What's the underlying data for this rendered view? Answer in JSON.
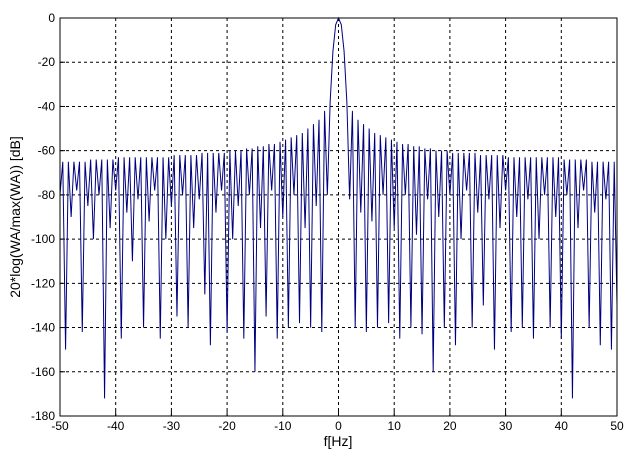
{
  "chart_data": {
    "type": "line",
    "xlabel": "f[Hz]",
    "ylabel": "20*log(WA/max(WA)) [dB]",
    "xlim": [
      -50,
      50
    ],
    "ylim": [
      -180,
      0
    ],
    "xticks": [
      -50,
      -40,
      -30,
      -20,
      -10,
      0,
      10,
      20,
      30,
      40,
      50
    ],
    "yticks": [
      0,
      -20,
      -40,
      -60,
      -80,
      -100,
      -120,
      -140,
      -160,
      -180
    ],
    "grid": true,
    "series": [
      {
        "color": "#00007f",
        "x": [
          -50,
          -49.5,
          -49,
          -48.5,
          -48,
          -47.5,
          -47,
          -46.5,
          -46,
          -45.5,
          -45,
          -44.5,
          -44,
          -43.5,
          -43,
          -42.5,
          -42,
          -41.5,
          -41,
          -40.5,
          -40,
          -39.5,
          -39,
          -38.5,
          -38,
          -37.5,
          -37,
          -36.5,
          -36,
          -35.5,
          -35,
          -34.5,
          -34,
          -33.5,
          -33,
          -32.5,
          -32,
          -31.5,
          -31,
          -30.5,
          -30,
          -29.5,
          -29,
          -28.5,
          -28,
          -27.5,
          -27,
          -26.5,
          -26,
          -25.5,
          -25,
          -24.5,
          -24,
          -23.5,
          -23,
          -22.5,
          -22,
          -21.5,
          -21,
          -20.5,
          -20,
          -19.5,
          -19,
          -18.5,
          -18,
          -17.5,
          -17,
          -16.5,
          -16,
          -15.5,
          -15,
          -14.5,
          -14,
          -13.5,
          -13,
          -12.5,
          -12,
          -11.5,
          -11,
          -10.5,
          -10,
          -9.5,
          -9,
          -8.5,
          -8,
          -7.5,
          -7,
          -6.5,
          -6,
          -5.5,
          -5,
          -4.5,
          -4,
          -3.5,
          -3,
          -2.5,
          -2,
          -1.5,
          -1,
          -0.5,
          0,
          0.5,
          1,
          1.5,
          2,
          2.5,
          3,
          3.5,
          4,
          4.5,
          5,
          5.5,
          6,
          6.5,
          7,
          7.5,
          8,
          8.5,
          9,
          9.5,
          10,
          10.5,
          11,
          11.5,
          12,
          12.5,
          13,
          13.5,
          14,
          14.5,
          15,
          15.5,
          16,
          16.5,
          17,
          17.5,
          18,
          18.5,
          19,
          19.5,
          20,
          20.5,
          21,
          21.5,
          22,
          22.5,
          23,
          23.5,
          24,
          24.5,
          25,
          25.5,
          26,
          26.5,
          27,
          27.5,
          28,
          28.5,
          29,
          29.5,
          30,
          30.5,
          31,
          31.5,
          32,
          32.5,
          33,
          33.5,
          34,
          34.5,
          35,
          35.5,
          36,
          36.5,
          37,
          37.5,
          38,
          38.5,
          39,
          39.5,
          40,
          40.5,
          41,
          41.5,
          42,
          42.5,
          43,
          43.5,
          44,
          44.5,
          45,
          45.5,
          46,
          46.5,
          47,
          47.5,
          48,
          48.5,
          49,
          49.5,
          50
        ],
        "values": [
          -80,
          -65,
          -150,
          -65,
          -90,
          -65,
          -78,
          -65,
          -142,
          -65,
          -85,
          -64,
          -100,
          -64,
          -80,
          -64,
          -172,
          -64,
          -95,
          -64,
          -78,
          -63,
          -145,
          -63,
          -88,
          -63,
          -110,
          -63,
          -82,
          -63,
          -140,
          -63,
          -92,
          -63,
          -78,
          -63,
          -145,
          -63,
          -100,
          -63,
          -85,
          -62,
          -135,
          -62,
          -80,
          -62,
          -140,
          -62,
          -95,
          -62,
          -82,
          -61,
          -125,
          -61,
          -148,
          -61,
          -88,
          -61,
          -78,
          -61,
          -142,
          -60,
          -100,
          -60,
          -85,
          -60,
          -145,
          -59,
          -80,
          -59,
          -160,
          -58,
          -95,
          -58,
          -135,
          -57,
          -78,
          -57,
          -145,
          -56,
          -90,
          -55,
          -140,
          -54,
          -80,
          -53,
          -138,
          -52,
          -95,
          -50,
          -140,
          -48,
          -85,
          -46,
          -142,
          -42,
          -80,
          -38,
          -15,
          -3,
          0,
          -3,
          -15,
          -38,
          -82,
          -42,
          -140,
          -46,
          -88,
          -48,
          -142,
          -50,
          -92,
          -52,
          -140,
          -53,
          -80,
          -54,
          -138,
          -55,
          -95,
          -56,
          -145,
          -57,
          -80,
          -57,
          -140,
          -58,
          -98,
          -58,
          -143,
          -59,
          -82,
          -59,
          -160,
          -60,
          -90,
          -60,
          -140,
          -60,
          -80,
          -61,
          -148,
          -61,
          -100,
          -61,
          -78,
          -61,
          -140,
          -61,
          -88,
          -62,
          -130,
          -62,
          -82,
          -62,
          -150,
          -62,
          -95,
          -62,
          -78,
          -63,
          -142,
          -63,
          -90,
          -63,
          -140,
          -63,
          -82,
          -63,
          -145,
          -63,
          -100,
          -63,
          -80,
          -63,
          -140,
          -63,
          -90,
          -63,
          -145,
          -64,
          -80,
          -64,
          -172,
          -64,
          -95,
          -64,
          -78,
          -64,
          -140,
          -65,
          -88,
          -65,
          -148,
          -65,
          -82,
          -65,
          -150,
          -65,
          -130
        ]
      }
    ]
  }
}
